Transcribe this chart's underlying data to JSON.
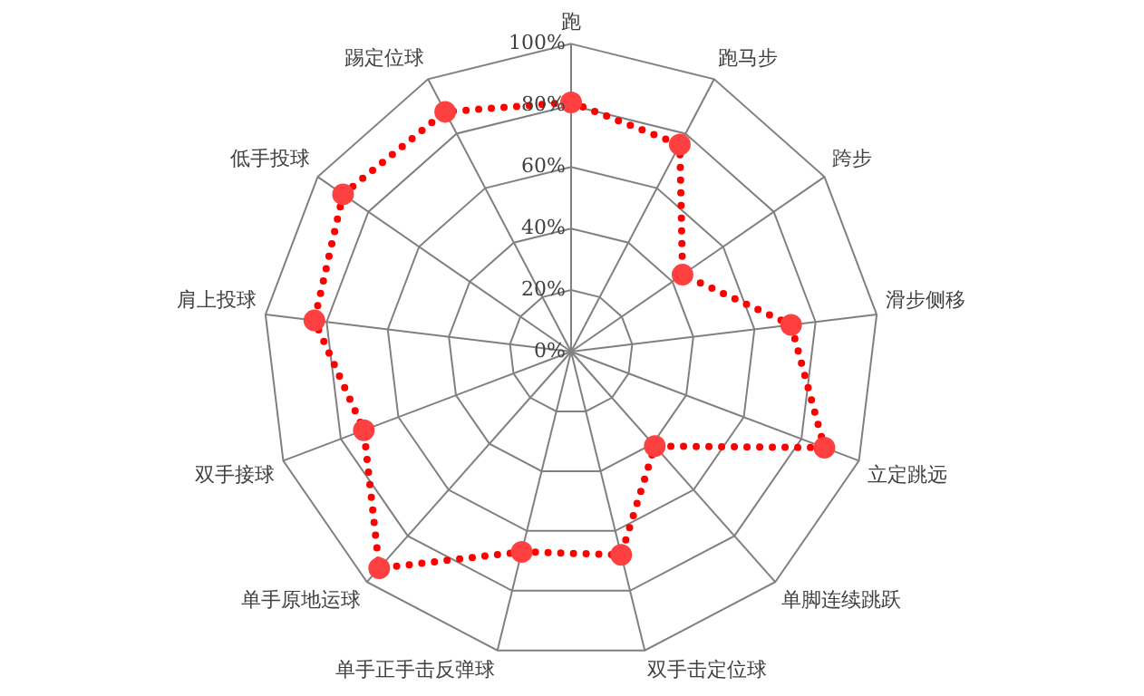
{
  "chart_data": {
    "type": "radar",
    "categories": [
      "跑",
      "跑马步",
      "跨步",
      "滑步侧移",
      "立定跳远",
      "单脚连续跳跃",
      "双手击定位球",
      "单手正手击反弹球",
      "单手原地运球",
      "双手接球",
      "肩上投球",
      "低手投球",
      "踢定位球"
    ],
    "series": [
      {
        "color": "#ff0000",
        "values": [
          81,
          76,
          44,
          72,
          88,
          41,
          68,
          67,
          94,
          72,
          84,
          90,
          88
        ]
      }
    ],
    "ylim": [
      0,
      100
    ],
    "yticks": [
      {
        "value": 0,
        "label": "0%"
      },
      {
        "value": 20,
        "label": "20%"
      },
      {
        "value": 40,
        "label": "40%"
      },
      {
        "value": 60,
        "label": "60%"
      },
      {
        "value": 80,
        "label": "80%"
      },
      {
        "value": 100,
        "label": "100%"
      }
    ],
    "grid": true,
    "legend": false,
    "marker": "circle",
    "line_style": "dotted"
  }
}
